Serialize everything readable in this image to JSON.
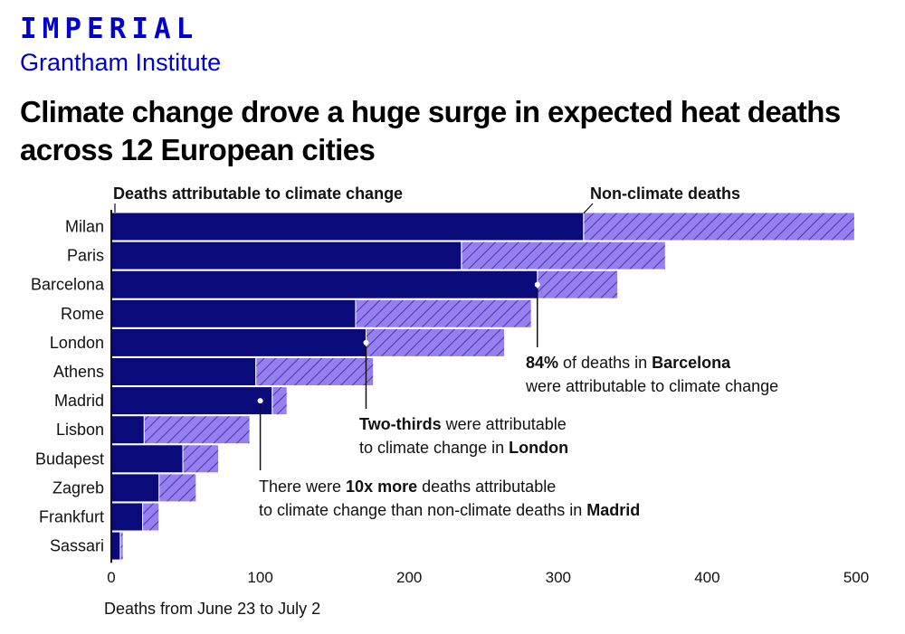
{
  "header": {
    "logo": "IMPERIAL",
    "institute": "Grantham Institute",
    "title": "Climate change drove a huge surge in expected heat deaths across 12 European cities"
  },
  "colors": {
    "climate": "#0b0a7a",
    "nonclimate": "#9580ee",
    "hatch": "#4535b8",
    "brand": "#0000cd"
  },
  "chart_data": {
    "type": "bar",
    "orientation": "horizontal",
    "stacked": true,
    "categories": [
      "Milan",
      "Paris",
      "Barcelona",
      "Rome",
      "London",
      "Athens",
      "Madrid",
      "Lisbon",
      "Budapest",
      "Zagreb",
      "Frankfurt",
      "Sassari"
    ],
    "series": [
      {
        "name": "Deaths attributable to climate change",
        "values": [
          317,
          235,
          286,
          164,
          171,
          97,
          108,
          22,
          48,
          32,
          21,
          6
        ]
      },
      {
        "name": "Non-climate deaths",
        "values": [
          182,
          137,
          54,
          118,
          93,
          79,
          10,
          71,
          24,
          25,
          11,
          2
        ]
      }
    ],
    "xlabel": "Deaths from June 23 to July 2",
    "xlim": [
      0,
      500
    ],
    "xticks": [
      0,
      100,
      200,
      300,
      400,
      500
    ],
    "legend_labels": [
      "Deaths attributable to climate change",
      "Non-climate deaths"
    ]
  },
  "annotations": {
    "barcelona": {
      "pct": "84%",
      "mid": " of deaths in ",
      "city": "Barcelona",
      "line2": "were attributable to climate change"
    },
    "london": {
      "bold": "Two-thirds",
      "rest": " were attributable",
      "line2_pre": "to climate change in ",
      "city": "London"
    },
    "madrid": {
      "pre": "There were ",
      "bold": "10x more",
      "rest": " deaths attributable",
      "line2_pre": "to climate change than non-climate deaths in ",
      "city": "Madrid"
    }
  }
}
